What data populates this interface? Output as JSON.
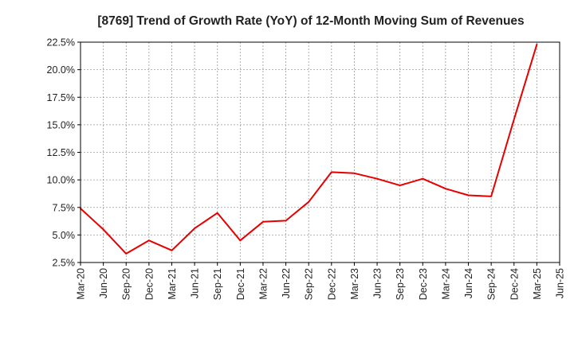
{
  "chart_data": {
    "type": "line",
    "title": "[8769]  Trend of Growth Rate (YoY) of 12-Month Moving Sum of Revenues",
    "xlabel": "",
    "ylabel": "",
    "x": [
      "Mar-20",
      "Jun-20",
      "Sep-20",
      "Dec-20",
      "Mar-21",
      "Jun-21",
      "Sep-21",
      "Dec-21",
      "Mar-22",
      "Jun-22",
      "Sep-22",
      "Dec-22",
      "Mar-23",
      "Jun-23",
      "Sep-23",
      "Dec-23",
      "Mar-24",
      "Jun-24",
      "Sep-24",
      "Dec-24",
      "Mar-25",
      "Jun-25"
    ],
    "series": [
      {
        "name": "",
        "color": "#e60000",
        "values": [
          7.4,
          5.5,
          3.3,
          4.5,
          3.6,
          5.6,
          7.0,
          4.5,
          6.2,
          6.3,
          8.0,
          10.7,
          10.6,
          10.1,
          9.5,
          10.1,
          9.2,
          8.6,
          8.5,
          15.5,
          22.3,
          null
        ]
      }
    ],
    "ylim": [
      2.5,
      22.5
    ],
    "yticks": [
      2.5,
      5.0,
      7.5,
      10.0,
      12.5,
      15.0,
      17.5,
      20.0,
      22.5
    ],
    "ytick_labels": [
      "2.5%",
      "5.0%",
      "7.5%",
      "10.0%",
      "12.5%",
      "15.0%",
      "17.5%",
      "20.0%",
      "22.5%"
    ],
    "grid": true,
    "grid_style": "dotted",
    "legend": "none"
  }
}
